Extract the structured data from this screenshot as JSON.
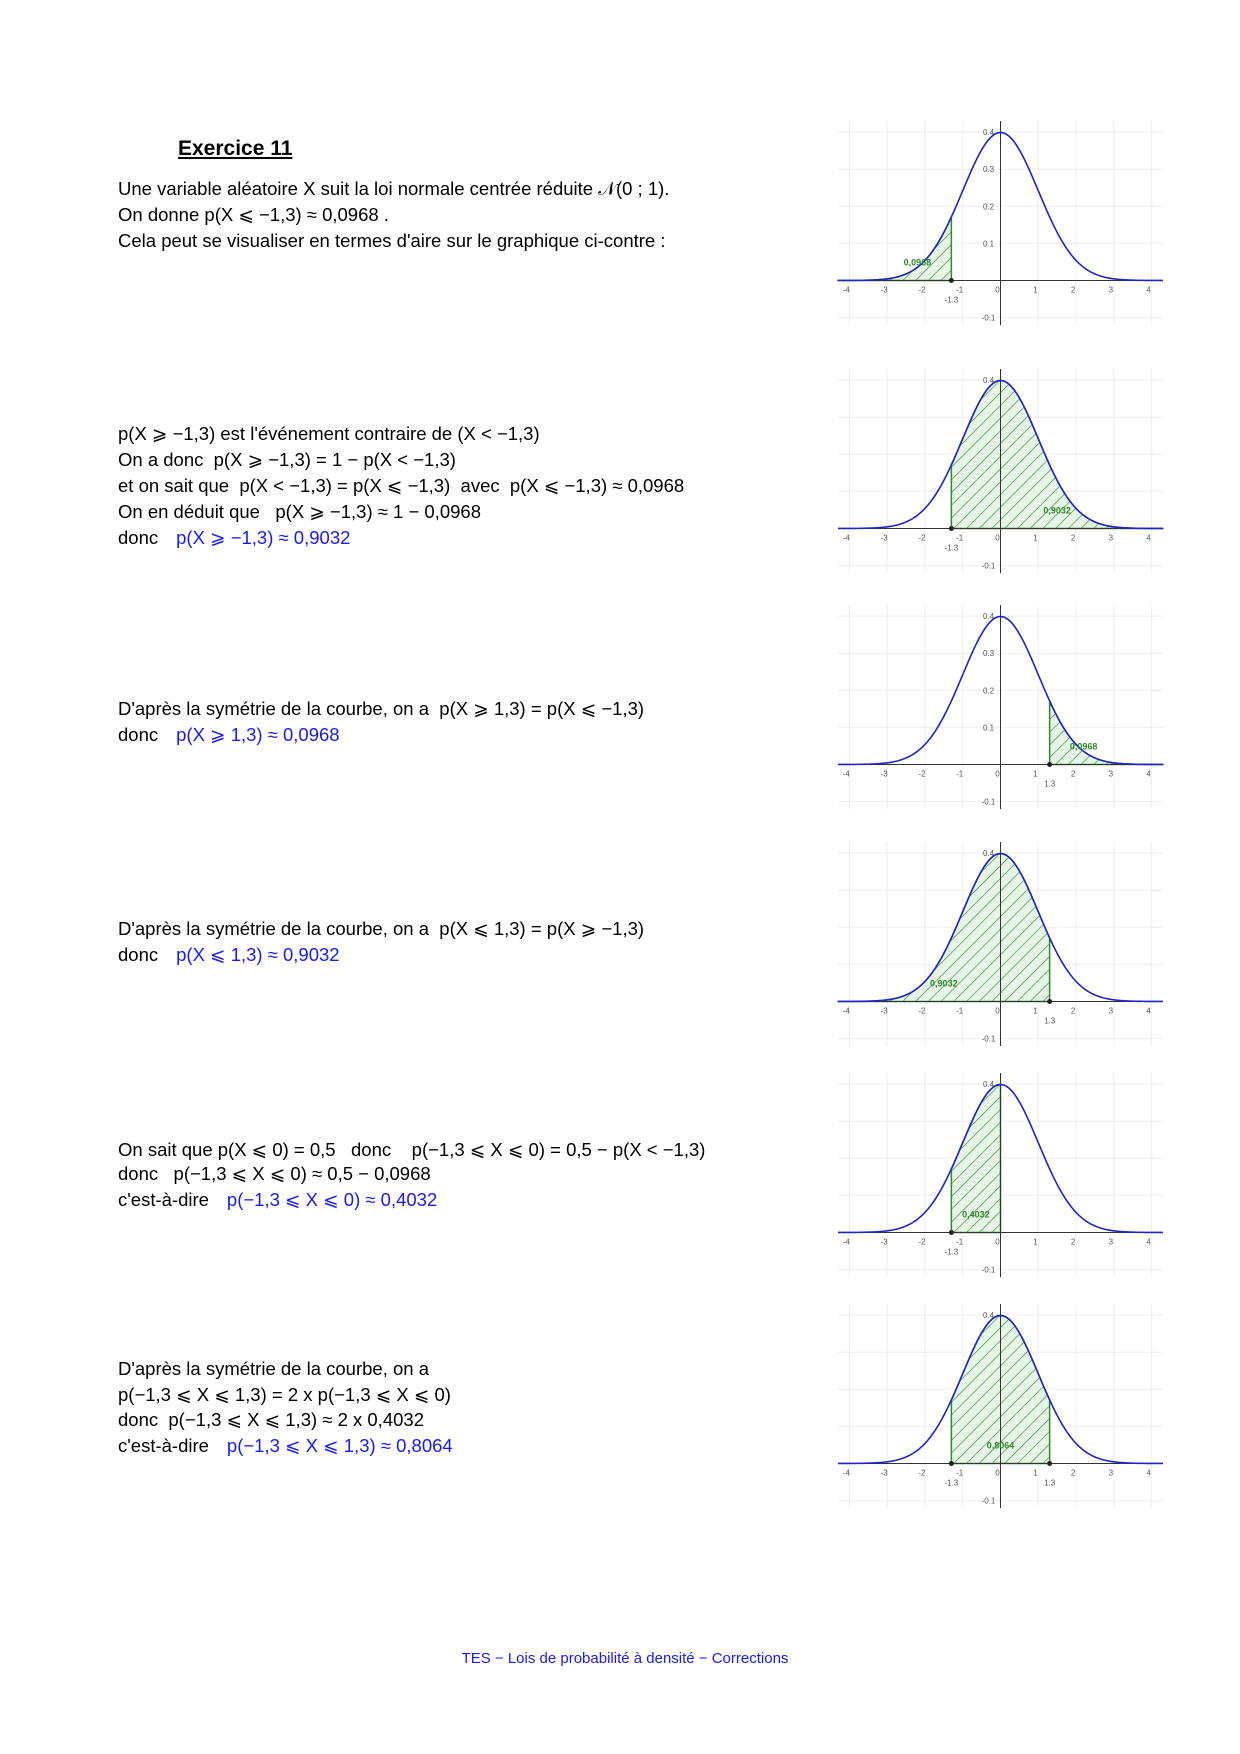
{
  "title": "Exercice 11",
  "sections": [
    {
      "lines": [
        {
          "text": "Une variable aléatoire X suit la loi normale centrée réduite 𝒩(0 ; 1)."
        },
        {
          "text": "On donne p(X ⩽ −1,3) ≈ 0,0968 ."
        },
        {
          "text": "Cela peut se visualiser en termes d'aire sur le graphique ci-contre :"
        }
      ]
    },
    {
      "lines": [
        {
          "text": "p(X ⩾ −1,3) est l'événement contraire de (X < −1,3)"
        },
        {
          "text": "On a donc  p(X ⩾ −1,3) = 1 − p(X < −1,3)"
        },
        {
          "text": "et on sait que  p(X < −1,3) = p(X ⩽ −1,3)  avec  p(X ⩽ −1,3) ≈ 0,0968"
        },
        {
          "text": "On en déduit que   p(X ⩾ −1,3) ≈ 1 − 0,0968"
        },
        {
          "text": "donc",
          "result": "p(X ⩾ −1,3) ≈ 0,9032"
        }
      ]
    },
    {
      "lines": [
        {
          "text": "D'après la symétrie de la courbe, on a  p(X ⩾ 1,3) = p(X ⩽ −1,3)"
        },
        {
          "text": "donc",
          "result": "p(X ⩾ 1,3) ≈ 0,0968"
        }
      ]
    },
    {
      "lines": [
        {
          "text": "D'après la symétrie de la courbe, on a  p(X ⩽ 1,3) = p(X ⩾ −1,3)"
        },
        {
          "text": "donc",
          "result": "p(X ⩽ 1,3) ≈ 0,9032"
        }
      ]
    },
    {
      "lines": [
        {
          "text": "On sait que p(X ⩽ 0) = 0,5   donc    p(−1,3 ⩽ X ⩽ 0) = 0,5 − p(X < −1,3)"
        },
        {
          "text": "donc   p(−1,3 ⩽ X ⩽ 0) ≈ 0,5 − 0,0968"
        },
        {
          "text": "c'est-à-dire",
          "result": "p(−1,3 ⩽ X ⩽ 0) ≈ 0,4032"
        }
      ]
    },
    {
      "lines": [
        {
          "text": "D'après la symétrie de la courbe, on a"
        },
        {
          "text": "p(−1,3 ⩽ X ⩽ 1,3) = 2 x p(−1,3 ⩽ X ⩽ 0)"
        },
        {
          "text": "donc  p(−1,3 ⩽ X ⩽ 1,3) ≈ 2 x 0,4032"
        },
        {
          "text": "c'est-à-dire",
          "result": "p(−1,3 ⩽ X ⩽ 1,3) ≈ 0,8064"
        }
      ]
    }
  ],
  "graph_axes": {
    "xlim": [
      -4.3,
      4.3
    ],
    "ylim": [
      -0.12,
      0.43
    ],
    "xticks": [
      -4,
      -3,
      -2,
      -1,
      0,
      1,
      2,
      3,
      4
    ],
    "yticks": [
      -0.1,
      0.1,
      0.2,
      0.3,
      0.4
    ]
  },
  "graphs": [
    {
      "shade": [
        -4.3,
        -1.3
      ],
      "area_label": "0,0968",
      "markers": [
        {
          "value": -1.3,
          "label": "-1.3"
        }
      ]
    },
    {
      "shade": [
        -1.3,
        4.3
      ],
      "area_label": "0,9032",
      "markers": [
        {
          "value": -1.3,
          "label": "-1.3"
        }
      ]
    },
    {
      "shade": [
        1.3,
        4.3
      ],
      "area_label": "0,0968",
      "markers": [
        {
          "value": 1.3,
          "label": "1.3"
        }
      ]
    },
    {
      "shade": [
        -4.3,
        1.3
      ],
      "area_label": "0,9032",
      "markers": [
        {
          "value": 1.3,
          "label": "1.3"
        }
      ]
    },
    {
      "shade": [
        -1.3,
        0
      ],
      "area_label": "0,4032",
      "markers": [
        {
          "value": -1.3,
          "label": "-1.3"
        }
      ]
    },
    {
      "shade": [
        -1.3,
        1.3
      ],
      "area_label": "0,8064",
      "markers": [
        {
          "value": -1.3,
          "label": "-1.3"
        },
        {
          "value": 1.3,
          "label": "1.3"
        }
      ]
    }
  ],
  "footer": "TES − Lois de probabilité à densité − Corrections"
}
